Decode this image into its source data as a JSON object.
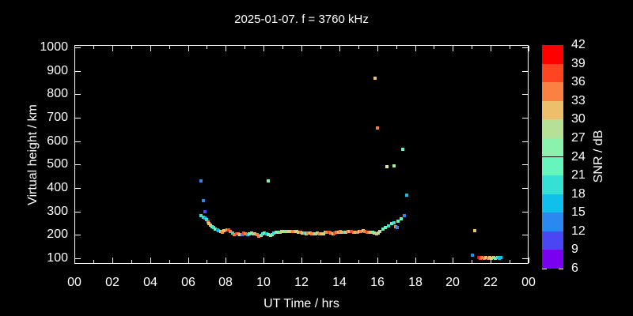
{
  "title": "2025-01-07. f = 3760 kHz",
  "chart_data": {
    "type": "scatter",
    "title": "2025-01-07. f = 3760 kHz",
    "xlabel": "UT Time / hrs",
    "ylabel": "Virtual height / km",
    "background_color": "#000000",
    "axis_color": "#ffffff",
    "grid": false,
    "x_range_hours": [
      0,
      24
    ],
    "x_tick_hours": [
      0,
      2,
      4,
      6,
      8,
      10,
      12,
      14,
      16,
      18,
      20,
      22,
      24
    ],
    "x_tick_labels": [
      "00",
      "02",
      "04",
      "06",
      "08",
      "10",
      "12",
      "14",
      "16",
      "18",
      "20",
      "22",
      "00"
    ],
    "x_minor_tick_hours": [
      1,
      3,
      5,
      7,
      9,
      11,
      13,
      15,
      17,
      19,
      21,
      23
    ],
    "y_ticks": [
      100,
      200,
      300,
      400,
      500,
      600,
      700,
      800,
      900,
      1000
    ],
    "ylim": [
      100,
      1000
    ],
    "colorbar": {
      "label": "SNR / dB",
      "tick_labels": [
        42,
        39,
        36,
        33,
        30,
        27,
        24,
        21,
        18,
        15,
        12,
        9,
        6
      ],
      "segment_colors_top_to_bottom": [
        "#ff0000",
        "#ff4422",
        "#fa8142",
        "#edbf6b",
        "#b5e096",
        "#8bf2ae",
        "#66f5bc",
        "#35e0d4",
        "#10c0ea",
        "#2a88f0",
        "#4a46f4",
        "#7a00f0"
      ]
    },
    "points": [
      [
        6.7,
        430,
        "#2a88f0"
      ],
      [
        6.7,
        283,
        "#35e0d4"
      ],
      [
        6.8,
        347,
        "#2a88f0"
      ],
      [
        6.82,
        277,
        "#35e0d4"
      ],
      [
        6.88,
        300,
        "#4a46f4"
      ],
      [
        6.9,
        272,
        "#10c0ea"
      ],
      [
        6.98,
        265,
        "#35e0d4"
      ],
      [
        7.05,
        255,
        "#fa8142"
      ],
      [
        7.12,
        248,
        "#edbf6b"
      ],
      [
        7.2,
        242,
        "#edbf6b"
      ],
      [
        7.28,
        236,
        "#66f5bc"
      ],
      [
        7.36,
        230,
        "#35e0d4"
      ],
      [
        7.45,
        226,
        "#66f5bc"
      ],
      [
        7.55,
        221,
        "#2a88f0"
      ],
      [
        7.62,
        218,
        "#10c0ea"
      ],
      [
        7.72,
        215,
        "#edbf6b"
      ],
      [
        7.82,
        213,
        "#fa8142"
      ],
      [
        7.92,
        217,
        "#edbf6b"
      ],
      [
        8.05,
        222,
        "#fa8142"
      ],
      [
        8.15,
        220,
        "#ff4422"
      ],
      [
        8.25,
        214,
        "#fa8142"
      ],
      [
        8.35,
        208,
        "#35e0d4"
      ],
      [
        8.45,
        202,
        "#fa8142"
      ],
      [
        8.55,
        205,
        "#ff4422"
      ],
      [
        8.65,
        203,
        "#fa8142"
      ],
      [
        8.75,
        200,
        "#edbf6b"
      ],
      [
        8.85,
        202,
        "#2a88f0"
      ],
      [
        8.95,
        207,
        "#ff4422"
      ],
      [
        9.05,
        205,
        "#fa8142"
      ],
      [
        9.15,
        200,
        "#10c0ea"
      ],
      [
        9.25,
        203,
        "#66f5bc"
      ],
      [
        9.35,
        208,
        "#b5e096"
      ],
      [
        9.45,
        205,
        "#66f5bc"
      ],
      [
        9.55,
        203,
        "#edbf6b"
      ],
      [
        9.65,
        200,
        "#fa8142"
      ],
      [
        9.75,
        196,
        "#fa8142"
      ],
      [
        9.85,
        198,
        "#66f5bc"
      ],
      [
        9.95,
        203,
        "#35e0d4"
      ],
      [
        10.05,
        207,
        "#66f5bc"
      ],
      [
        10.15,
        205,
        "#10c0ea"
      ],
      [
        10.24,
        432,
        "#8bf2ae"
      ],
      [
        10.25,
        200,
        "#66f5bc"
      ],
      [
        10.35,
        197,
        "#b5e096"
      ],
      [
        10.45,
        201,
        "#66f5bc"
      ],
      [
        10.55,
        207,
        "#35e0d4"
      ],
      [
        10.65,
        210,
        "#66f5bc"
      ],
      [
        10.75,
        212,
        "#b5e096"
      ],
      [
        10.85,
        213,
        "#66f5bc"
      ],
      [
        10.95,
        214,
        "#edbf6b"
      ],
      [
        11.05,
        215,
        "#b5e096"
      ],
      [
        11.15,
        214,
        "#66f5bc"
      ],
      [
        11.25,
        215,
        "#edbf6b"
      ],
      [
        11.35,
        216,
        "#b5e096"
      ],
      [
        11.45,
        215,
        "#edbf6b"
      ],
      [
        11.55,
        216,
        "#fa8142"
      ],
      [
        11.65,
        215,
        "#edbf6b"
      ],
      [
        11.75,
        214,
        "#b5e096"
      ],
      [
        11.85,
        213,
        "#edbf6b"
      ],
      [
        11.95,
        211,
        "#fa8142"
      ],
      [
        12.05,
        209,
        "#edbf6b"
      ],
      [
        12.15,
        207,
        "#35e0d4"
      ],
      [
        12.25,
        205,
        "#edbf6b"
      ],
      [
        12.35,
        207,
        "#fa8142"
      ],
      [
        12.45,
        209,
        "#edbf6b"
      ],
      [
        12.55,
        206,
        "#fa8142"
      ],
      [
        12.65,
        203,
        "#edbf6b"
      ],
      [
        12.75,
        205,
        "#66f5bc"
      ],
      [
        12.85,
        207,
        "#edbf6b"
      ],
      [
        12.95,
        205,
        "#fa8142"
      ],
      [
        13.05,
        203,
        "#edbf6b"
      ],
      [
        13.15,
        206,
        "#b5e096"
      ],
      [
        13.25,
        210,
        "#edbf6b"
      ],
      [
        13.35,
        212,
        "#fa8142"
      ],
      [
        13.45,
        210,
        "#ff4422"
      ],
      [
        13.55,
        207,
        "#fa8142"
      ],
      [
        13.65,
        205,
        "#edbf6b"
      ],
      [
        13.75,
        208,
        "#ff4422"
      ],
      [
        13.85,
        211,
        "#fa8142"
      ],
      [
        13.95,
        213,
        "#edbf6b"
      ],
      [
        14.05,
        214,
        "#fa8142"
      ],
      [
        14.15,
        212,
        "#edbf6b"
      ],
      [
        14.25,
        210,
        "#35e0d4"
      ],
      [
        14.35,
        212,
        "#edbf6b"
      ],
      [
        14.45,
        214,
        "#fa8142"
      ],
      [
        14.55,
        216,
        "#edbf6b"
      ],
      [
        14.65,
        214,
        "#ff4422"
      ],
      [
        14.75,
        212,
        "#fa8142"
      ],
      [
        14.85,
        210,
        "#edbf6b"
      ],
      [
        14.95,
        212,
        "#fa8142"
      ],
      [
        15.05,
        214,
        "#edbf6b"
      ],
      [
        15.15,
        216,
        "#fa8142"
      ],
      [
        15.25,
        218,
        "#edbf6b"
      ],
      [
        15.35,
        216,
        "#fa8142"
      ],
      [
        15.45,
        213,
        "#ff4422"
      ],
      [
        15.55,
        211,
        "#fa8142"
      ],
      [
        15.65,
        212,
        "#edbf6b"
      ],
      [
        15.75,
        210,
        "#66f5bc"
      ],
      [
        15.85,
        207,
        "#b5e096"
      ],
      [
        15.9,
        870,
        "#edbf6b"
      ],
      [
        15.95,
        205,
        "#edbf6b"
      ],
      [
        16.0,
        655,
        "#fa8142"
      ],
      [
        16.05,
        208,
        "#b5e096"
      ],
      [
        16.15,
        215,
        "#b5e096"
      ],
      [
        16.3,
        224,
        "#66f5bc"
      ],
      [
        16.45,
        232,
        "#66f5bc"
      ],
      [
        16.5,
        490,
        "#dce896"
      ],
      [
        16.6,
        240,
        "#35e0d4"
      ],
      [
        16.75,
        247,
        "#66f5bc"
      ],
      [
        16.9,
        495,
        "#a9ef9f"
      ],
      [
        16.9,
        252,
        "#35e0d4"
      ],
      [
        16.98,
        236,
        "#fa8142"
      ],
      [
        17.04,
        232,
        "#2a88f0"
      ],
      [
        17.1,
        258,
        "#66f5bc"
      ],
      [
        17.25,
        268,
        "#66f5bc"
      ],
      [
        17.35,
        565,
        "#66f5bc"
      ],
      [
        17.45,
        283,
        "#2a88f0"
      ],
      [
        17.55,
        370,
        "#10c0ea"
      ],
      [
        21.05,
        113,
        "#2a88f0"
      ],
      [
        21.15,
        218,
        "#edbf6b"
      ],
      [
        21.35,
        102,
        "#ff0000"
      ],
      [
        21.45,
        101,
        "#ff4422"
      ],
      [
        21.55,
        102,
        "#fa8142"
      ],
      [
        21.65,
        101,
        "#fa8142"
      ],
      [
        21.75,
        102,
        "#edbf6b"
      ],
      [
        21.85,
        101,
        "#fa8142"
      ],
      [
        21.95,
        102,
        "#edbf6b"
      ],
      [
        22.05,
        101,
        "#b5e096"
      ],
      [
        22.15,
        102,
        "#edbf6b"
      ],
      [
        22.25,
        101,
        "#66f5bc"
      ],
      [
        22.35,
        102,
        "#35e0d4"
      ],
      [
        22.45,
        101,
        "#10c0ea"
      ],
      [
        22.55,
        102,
        "#10c0ea"
      ]
    ]
  }
}
